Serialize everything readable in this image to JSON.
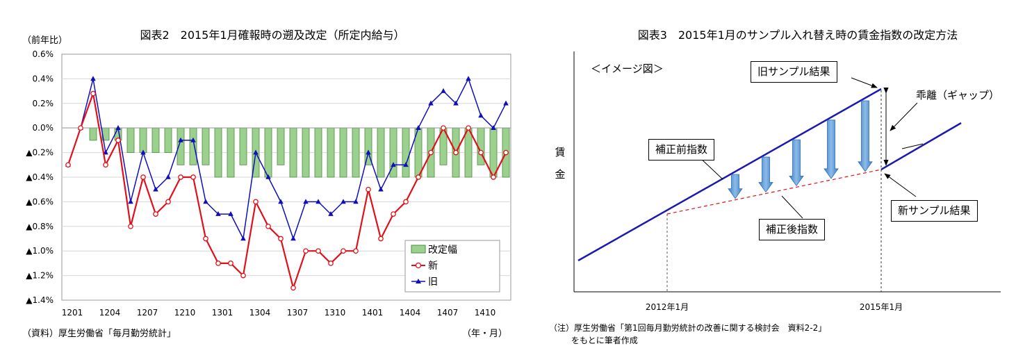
{
  "left_chart": {
    "title": "図表2　2015年1月確報時の遡及改定（所定内給与）",
    "ylabel": "（前年比）",
    "xlabel": "（年・月）",
    "source": "（資料）厚生労働省「毎月勤労統計」",
    "y_tick_labels": [
      "0.6%",
      "0.4%",
      "0.2%",
      "0.0%",
      "▲0.2%",
      "▲0.4%",
      "▲0.6%",
      "▲0.8%",
      "▲1.0%",
      "▲1.2%",
      "▲1.4%"
    ],
    "x_tick_labels": [
      "1201",
      "1204",
      "1207",
      "1210",
      "1301",
      "1304",
      "1307",
      "1310",
      "1401",
      "1404",
      "1407",
      "1410"
    ]
  },
  "right_chart": {
    "title": "図表3　2015年1月のサンプル入れ替え時の賃金指数の改定方法",
    "subtitle": "＜イメージ図＞",
    "ylabel": "賃金",
    "label_old_sample": "旧サンプル結果",
    "label_gap": "乖離（ギャップ）",
    "label_before": "補正前指数",
    "label_after": "補正後指数",
    "label_new_sample": "新サンプル結果",
    "x_labels": [
      "2012年1月",
      "2015年1月"
    ],
    "note_line1": "（注）厚生労働省「第1回毎月勤労統計の改善に関する検討会　資料2-2」",
    "note_line2": "をもとに筆者作成"
  },
  "chart_data": [
    {
      "type": "bar+line",
      "title": "図表2　2015年1月確報時の遡及改定（所定内給与）",
      "xlabel": "（年・月）",
      "ylabel": "（前年比）",
      "ylim": [
        -1.4,
        0.6
      ],
      "y_unit": "%",
      "grid": true,
      "legend_position": "bottom-right",
      "categories": [
        "1201",
        "1202",
        "1203",
        "1204",
        "1205",
        "1206",
        "1207",
        "1208",
        "1209",
        "1210",
        "1211",
        "1212",
        "1301",
        "1302",
        "1303",
        "1304",
        "1305",
        "1306",
        "1307",
        "1308",
        "1309",
        "1310",
        "1311",
        "1312",
        "1401",
        "1402",
        "1403",
        "1404",
        "1405",
        "1406",
        "1407",
        "1408",
        "1409",
        "1410",
        "1411",
        "1412"
      ],
      "series": [
        {
          "name": "改定幅",
          "type": "bar",
          "color": "#9bd08e",
          "values": [
            0.0,
            0.0,
            -0.1,
            -0.1,
            -0.1,
            -0.2,
            -0.2,
            -0.2,
            -0.2,
            -0.3,
            -0.3,
            -0.3,
            -0.4,
            -0.4,
            -0.3,
            -0.4,
            -0.4,
            -0.3,
            -0.4,
            -0.4,
            -0.4,
            -0.4,
            -0.4,
            -0.4,
            -0.3,
            -0.4,
            -0.4,
            -0.4,
            -0.4,
            -0.4,
            -0.3,
            -0.4,
            -0.4,
            -0.3,
            -0.4,
            -0.4
          ]
        },
        {
          "name": "新",
          "type": "line",
          "color": "#e0101a",
          "values": [
            -0.3,
            0.0,
            0.28,
            -0.3,
            -0.1,
            -0.8,
            -0.4,
            -0.7,
            -0.6,
            -0.4,
            -0.4,
            -0.9,
            -1.1,
            -1.1,
            -1.2,
            -0.6,
            -0.8,
            -0.9,
            -1.3,
            -1.0,
            -1.0,
            -1.1,
            -1.0,
            -1.0,
            -0.5,
            -0.9,
            -0.7,
            -0.6,
            -0.4,
            -0.2,
            0.0,
            -0.2,
            0.0,
            -0.2,
            -0.4,
            -0.2
          ]
        },
        {
          "name": "旧",
          "type": "line",
          "color": "#1010b8",
          "values": [
            -0.3,
            0.0,
            0.4,
            -0.2,
            0.0,
            -0.6,
            -0.2,
            -0.5,
            -0.4,
            -0.1,
            -0.1,
            -0.6,
            -0.7,
            -0.7,
            -0.9,
            -0.2,
            -0.4,
            -0.6,
            -0.9,
            -0.6,
            -0.6,
            -0.7,
            -0.6,
            -0.6,
            -0.2,
            -0.5,
            -0.3,
            -0.3,
            0.0,
            0.2,
            0.3,
            0.2,
            0.4,
            0.1,
            0.0,
            0.2
          ]
        }
      ]
    },
    {
      "type": "diagram",
      "title": "図表3　2015年1月のサンプル入れ替え時の賃金指数の改定方法",
      "x_labels": [
        "2012年1月",
        "2015年1月"
      ]
    }
  ]
}
